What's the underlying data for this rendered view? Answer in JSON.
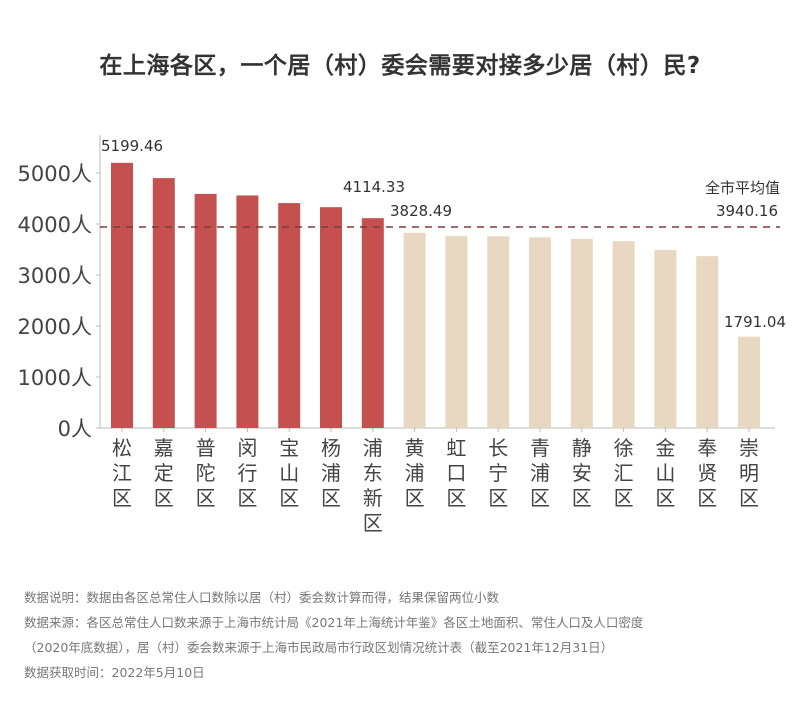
{
  "title": "在上海各区，一个居（村）委会需要对接多少居（村）民?",
  "chart_data": {
    "type": "bar",
    "title": "在上海各区，一个居（村）委会需要对接多少居（村）民?",
    "categories": [
      "松江区",
      "嘉定区",
      "普陀区",
      "闵行区",
      "宝山区",
      "杨浦区",
      "浦东新区",
      "黄浦区",
      "虹口区",
      "长宁区",
      "青浦区",
      "静安区",
      "徐汇区",
      "金山区",
      "奉贤区",
      "崇明区"
    ],
    "values": [
      5199.46,
      4900,
      4590,
      4560,
      4410,
      4330,
      4114.33,
      3828.49,
      3765,
      3760,
      3740,
      3710,
      3665,
      3490,
      3370,
      1791.04
    ],
    "data_labels": {
      "0": "5199.46",
      "6": "4114.33",
      "7": "3828.49",
      "15": "1791.04"
    },
    "highlight_count": 7,
    "colors": {
      "above_avg": "#c45050",
      "below_avg": "#e8d8c2",
      "avg_line": "#7a3b3b"
    },
    "ylim": [
      0,
      5400
    ],
    "yticks": [
      0,
      1000,
      2000,
      3000,
      4000,
      5000
    ],
    "ytick_labels": [
      "0人",
      "1000人",
      "2000人",
      "3000人",
      "4000人",
      "5000人"
    ],
    "reference_line": {
      "label": "全市平均值",
      "value_label": "3940.16",
      "value": 3940.16
    },
    "xlabel": "",
    "ylabel": "",
    "grid": false
  },
  "notes": [
    "数据说明：数据由各区总常住人口数除以居（村）委会数计算而得，结果保留两位小数",
    "数据来源：各区总常住人口数来源于上海市统计局《2021年上海统计年鉴》各区土地面积、常住人口及人口密度",
    "（2020年底数据），居（村）委会数来源于上海市民政局市行政区划情况统计表（截至2021年12月31日）",
    "数据获取时间：2022年5月10日"
  ]
}
